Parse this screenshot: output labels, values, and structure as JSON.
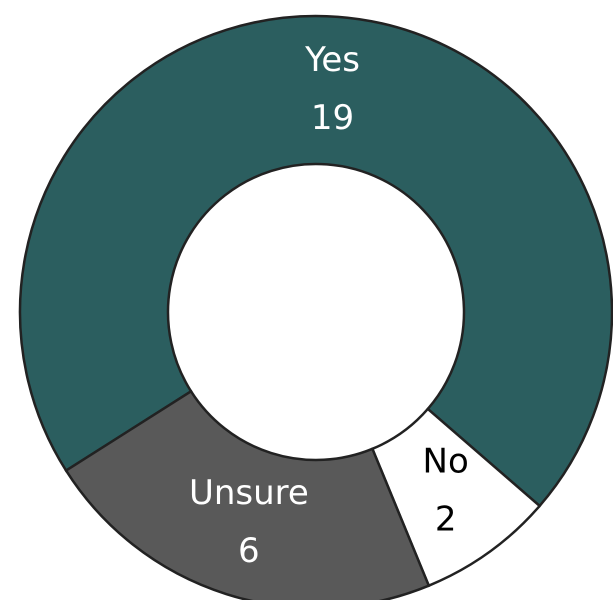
{
  "chart_data": {
    "type": "donut",
    "categories": [
      "Yes",
      "No",
      "Unsure"
    ],
    "values": [
      19,
      2,
      6
    ],
    "colors": [
      "#2b5e5f",
      "#ffffff",
      "#595959"
    ],
    "label_colors": [
      "#ffffff",
      "#000000",
      "#ffffff"
    ]
  }
}
